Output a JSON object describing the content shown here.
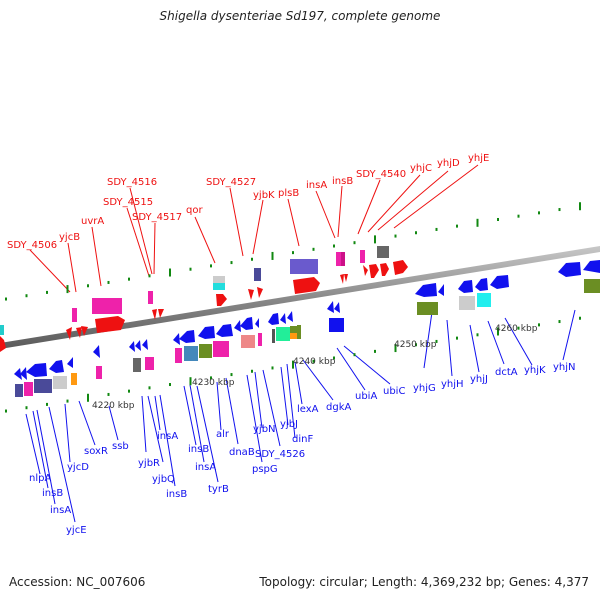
{
  "title": "Shigella dysenteriae Sd197, complete genome",
  "footer": {
    "accession": "Accession: NC_007606",
    "summary": "Topology: circular; Length: 4,369,232 bp; Genes: 4,377"
  },
  "colors": {
    "forward_label": "#ee1111",
    "reverse_label": "#1111ee",
    "backbone": "#8a8a8a",
    "tick": "#118811"
  },
  "ticks": [
    {
      "label": "4220 kbp"
    },
    {
      "label": "4230 kbp"
    },
    {
      "label": "4240 kbp"
    },
    {
      "label": "4250 kbp"
    },
    {
      "label": "4260 kbp"
    }
  ],
  "forward_labels": [
    {
      "text": "SDY_4506"
    },
    {
      "text": "yjcB"
    },
    {
      "text": "uvrA"
    },
    {
      "text": "SDY_4515"
    },
    {
      "text": "SDY_4516"
    },
    {
      "text": "SDY_4517"
    },
    {
      "text": "qor"
    },
    {
      "text": "SDY_4527"
    },
    {
      "text": "yjbK"
    },
    {
      "text": "plsB"
    },
    {
      "text": "insA"
    },
    {
      "text": "insB"
    },
    {
      "text": "SDY_4540"
    },
    {
      "text": "yhjC"
    },
    {
      "text": "yhjD"
    },
    {
      "text": "yhjE"
    }
  ],
  "reverse_labels": [
    {
      "text": "nlpA"
    },
    {
      "text": "insB"
    },
    {
      "text": "insA"
    },
    {
      "text": "yjcE"
    },
    {
      "text": "yjcD"
    },
    {
      "text": "soxR"
    },
    {
      "text": "ssb"
    },
    {
      "text": "yjbR"
    },
    {
      "text": "yjbQ"
    },
    {
      "text": "insB"
    },
    {
      "text": "insA"
    },
    {
      "text": "insB"
    },
    {
      "text": "insA"
    },
    {
      "text": "tyrB"
    },
    {
      "text": "alr"
    },
    {
      "text": "dnaB"
    },
    {
      "text": "pspG"
    },
    {
      "text": "yjbN"
    },
    {
      "text": "SDY_4526"
    },
    {
      "text": "yjbJ"
    },
    {
      "text": "dinF"
    },
    {
      "text": "lexA"
    },
    {
      "text": "dgkA"
    },
    {
      "text": "ubiA"
    },
    {
      "text": "ubiC"
    },
    {
      "text": "yhjG"
    },
    {
      "text": "yhjH"
    },
    {
      "text": "yhjJ"
    },
    {
      "text": "dctA"
    },
    {
      "text": "yhjK"
    },
    {
      "text": "yhjN"
    }
  ]
}
